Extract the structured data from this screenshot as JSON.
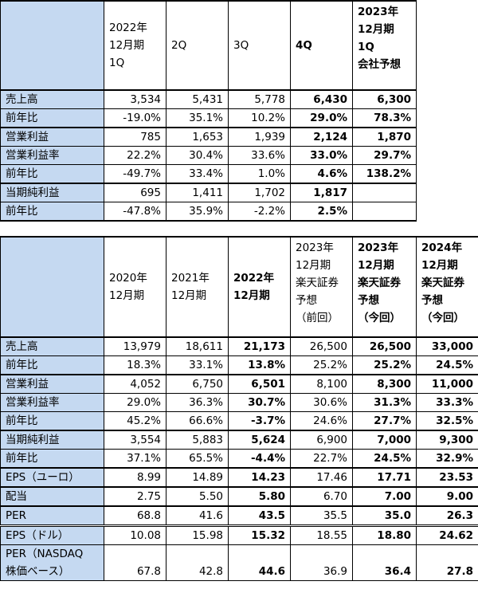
{
  "table1": {
    "headers": [
      [
        "2022年",
        "12月期",
        "1Q"
      ],
      [
        "2Q"
      ],
      [
        "3Q"
      ],
      [
        "4Q"
      ],
      [
        "2023年",
        "12月期",
        "1Q",
        "会社予想"
      ]
    ],
    "rows": [
      {
        "label": "売上高",
        "values": [
          "3,534",
          "5,431",
          "5,778",
          "6,430",
          "6,300"
        ]
      },
      {
        "label": "前年比",
        "values": [
          "-19.0%",
          "35.1%",
          "10.2%",
          "29.0%",
          "78.3%"
        ]
      },
      {
        "label": "営業利益",
        "values": [
          "785",
          "1,653",
          "1,939",
          "2,124",
          "1,870"
        ]
      },
      {
        "label": "営業利益率",
        "values": [
          "22.2%",
          "30.4%",
          "33.6%",
          "33.0%",
          "29.7%"
        ]
      },
      {
        "label": "前年比",
        "values": [
          "-49.7%",
          "33.4%",
          "1.0%",
          "4.6%",
          "138.2%"
        ]
      },
      {
        "label": "当期純利益",
        "values": [
          "695",
          "1,411",
          "1,702",
          "1,817",
          ""
        ]
      },
      {
        "label": "前年比",
        "values": [
          "-47.8%",
          "35.9%",
          "-2.2%",
          "2.5%",
          ""
        ]
      }
    ]
  },
  "table2": {
    "headers": [
      [
        "2020年",
        "12月期"
      ],
      [
        "2021年",
        "12月期"
      ],
      [
        "2022年",
        "12月期"
      ],
      [
        "2023年",
        "12月期",
        "楽天証券",
        "予想",
        "（前回）"
      ],
      [
        "2023年",
        "12月期",
        "楽天証券",
        "予想",
        "（今回）"
      ],
      [
        "2024年",
        "12月期",
        "楽天証券",
        "予想",
        "（今回）"
      ]
    ],
    "rows": [
      {
        "label": "売上高",
        "values": [
          "13,979",
          "18,611",
          "21,173",
          "26,500",
          "26,500",
          "33,000"
        ]
      },
      {
        "label": "前年比",
        "values": [
          "18.3%",
          "33.1%",
          "13.8%",
          "25.2%",
          "25.2%",
          "24.5%"
        ]
      },
      {
        "label": "営業利益",
        "values": [
          "4,052",
          "6,750",
          "6,501",
          "8,100",
          "8,300",
          "11,000"
        ]
      },
      {
        "label": "営業利益率",
        "values": [
          "29.0%",
          "36.3%",
          "30.7%",
          "30.6%",
          "31.3%",
          "33.3%"
        ]
      },
      {
        "label": "前年比",
        "values": [
          "45.2%",
          "66.6%",
          "-3.7%",
          "24.6%",
          "27.7%",
          "32.5%"
        ]
      },
      {
        "label": "当期純利益",
        "values": [
          "3,554",
          "5,883",
          "5,624",
          "6,900",
          "7,000",
          "9,300"
        ]
      },
      {
        "label": "前年比",
        "values": [
          "37.1%",
          "65.5%",
          "-4.4%",
          "22.7%",
          "24.5%",
          "32.9%"
        ]
      },
      {
        "label": "EPS（ユーロ）",
        "values": [
          "8.99",
          "14.89",
          "14.23",
          "17.46",
          "17.71",
          "23.53"
        ]
      },
      {
        "label": "配当",
        "values": [
          "2.75",
          "5.50",
          "5.80",
          "6.70",
          "7.00",
          "9.00"
        ]
      },
      {
        "label": "PER",
        "values": [
          "68.8",
          "41.6",
          "43.5",
          "35.5",
          "35.0",
          "26.3"
        ]
      },
      {
        "label": "EPS（ドル）",
        "values": [
          "10.08",
          "15.98",
          "15.32",
          "18.55",
          "18.80",
          "24.62"
        ]
      },
      {
        "label_lines": [
          "PER（NASDAQ",
          "株価ベース）"
        ],
        "values": [
          "67.8",
          "42.8",
          "44.6",
          "36.9",
          "36.4",
          "27.8"
        ]
      }
    ]
  }
}
